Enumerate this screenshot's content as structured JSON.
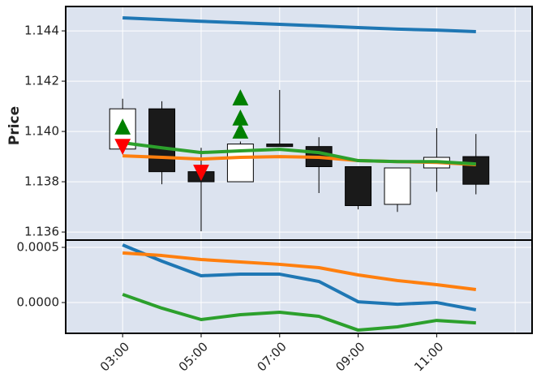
{
  "chart_data": {
    "type": "candlestick",
    "categories": [
      "03:00",
      null,
      "05:00",
      null,
      "07:00",
      null,
      "09:00",
      null,
      "11:00",
      null
    ],
    "xlim": [
      -1.45,
      10.43
    ],
    "xticks": [
      0,
      2,
      4,
      6,
      8,
      10
    ],
    "ylabel": "Price",
    "ylim": [
      1.13568,
      1.14497
    ],
    "yticks": [
      1.136,
      1.138,
      {
        "value": 1.14,
        "label": "1.140"
      },
      1.142,
      1.144
    ],
    "grid": true,
    "up_color": "#ffffff",
    "down_color": "#1a1a1a",
    "open": [
      1.1393,
      1.1409,
      1.1384,
      1.138,
      1.1395,
      1.1394,
      1.1386,
      1.1371,
      1.13855,
      1.139
    ],
    "high": [
      1.1413,
      1.1412,
      1.13935,
      1.1396,
      1.14165,
      1.13977,
      1.1386,
      1.13855,
      1.14013,
      1.1399
    ],
    "low": [
      1.1393,
      1.1379,
      1.13603,
      1.138,
      1.1394,
      1.13755,
      1.1369,
      1.1368,
      1.1376,
      1.1375
    ],
    "close": [
      1.1409,
      1.1384,
      1.138,
      1.1395,
      1.1394,
      1.1386,
      1.13705,
      1.13855,
      1.13897,
      1.1379
    ],
    "lines": [
      {
        "color": "#1f77b4",
        "values": [
          1.14452,
          1.14445,
          1.14438,
          1.14432,
          1.14426,
          1.1442,
          1.14413,
          1.14407,
          1.14403,
          1.14397
        ]
      },
      {
        "color": "#ff7f0e",
        "values": [
          1.13903,
          1.13897,
          1.1389,
          1.13897,
          1.139,
          1.13897,
          1.13884,
          1.1388,
          1.13877,
          1.13868
        ]
      },
      {
        "color": "#2ca02c",
        "values": [
          1.13955,
          1.13935,
          1.13916,
          1.13923,
          1.13929,
          1.13916,
          1.13884,
          1.1388,
          1.1388,
          1.13871
        ]
      }
    ],
    "markers": [
      {
        "marker": "up",
        "color": "#008000",
        "values": [
          1.14016,
          null,
          null,
          1.14132,
          null,
          null,
          null,
          null,
          null,
          null
        ]
      },
      {
        "marker": "up",
        "color": "#008000",
        "values": [
          null,
          null,
          null,
          1.14052,
          null,
          null,
          null,
          null,
          null,
          null
        ]
      },
      {
        "marker": "up",
        "color": "#008000",
        "values": [
          null,
          null,
          null,
          1.14,
          null,
          null,
          null,
          null,
          null,
          null
        ]
      },
      {
        "marker": "down",
        "color": "#ff0000",
        "values": [
          1.13942,
          null,
          1.13839,
          null,
          null,
          null,
          null,
          null,
          null,
          null
        ]
      }
    ],
    "lower": {
      "type": "line",
      "ylim": [
        -0.000279,
        0.000566
      ],
      "yticks": [
        {
          "value": 0,
          "label": "0.0000"
        },
        0.0005
      ],
      "series": [
        {
          "color": "#1f77b4",
          "values": [
            0.000522,
            0.000375,
            0.000243,
            0.000257,
            0.000257,
            0.000191,
            7e-06,
            -1.5e-05,
            0.0,
            -6.6e-05
          ]
        },
        {
          "color": "#ff7f0e",
          "values": [
            0.000449,
            0.000426,
            0.00039,
            0.000368,
            0.000346,
            0.000316,
            0.00025,
            0.000199,
            0.000162,
            0.000118
          ]
        },
        {
          "color": "#2ca02c",
          "values": [
            7.4e-05,
            -5.1e-05,
            -0.000154,
            -0.00011,
            -8.8e-05,
            -0.000125,
            -0.00025,
            -0.00022,
            -0.000162,
            -0.000184
          ]
        }
      ]
    }
  }
}
